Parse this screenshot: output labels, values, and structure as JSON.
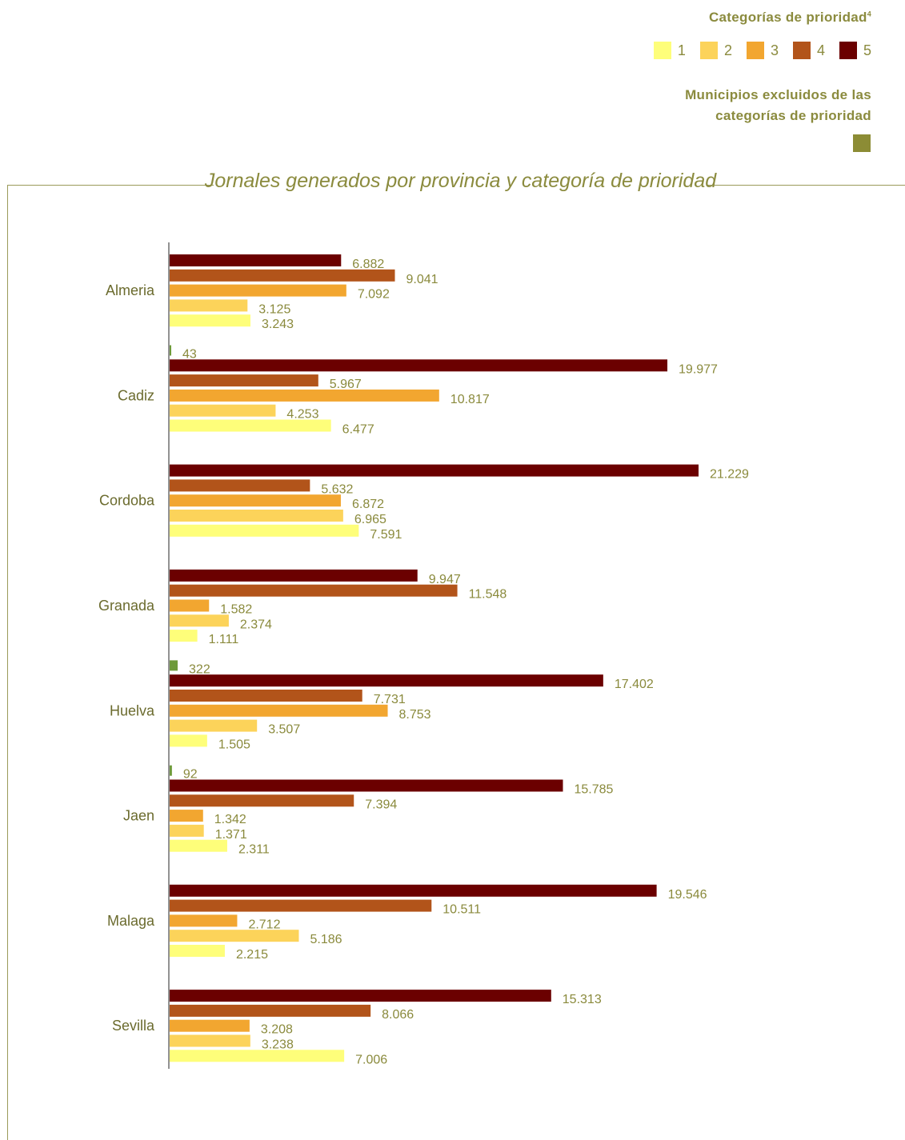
{
  "legend": {
    "title": "Categorías de prioridad",
    "title_sup": "4",
    "items": [
      {
        "label": "1",
        "color": "#fefe7a"
      },
      {
        "label": "2",
        "color": "#fcd35a"
      },
      {
        "label": "3",
        "color": "#f2a630"
      },
      {
        "label": "4",
        "color": "#b2541a"
      },
      {
        "label": "5",
        "color": "#6b0000"
      }
    ],
    "excluded_title_line1": "Municipios excluidos de las",
    "excluded_title_line2": "categorías de prioridad",
    "excluded_color": "#8c8c35"
  },
  "chart_data": {
    "type": "bar",
    "orientation": "horizontal",
    "title": "Jornales generados por provincia y categoría de prioridad",
    "categories": [
      "Almeria",
      "Cadiz",
      "Cordoba",
      "Granada",
      "Huelva",
      "Jaen",
      "Malaga",
      "Sevilla"
    ],
    "series": [
      {
        "name": "Excluidos",
        "color": "#6e9a3a",
        "values": [
          null,
          43,
          null,
          null,
          322,
          92,
          null,
          null
        ],
        "labels": [
          null,
          "43",
          null,
          null,
          "322",
          "92",
          null,
          null
        ]
      },
      {
        "name": "5",
        "color": "#6b0000",
        "values": [
          6882,
          19977,
          21229,
          9947,
          17402,
          15785,
          19546,
          15313
        ],
        "labels": [
          "6.882",
          "19.977",
          "21.229",
          "9.947",
          "17.402",
          "15.785",
          "19.546",
          "15.313"
        ]
      },
      {
        "name": "4",
        "color": "#b2541a",
        "values": [
          9041,
          5967,
          5632,
          11548,
          7731,
          7394,
          10511,
          8066
        ],
        "labels": [
          "9.041",
          "5.967",
          "5.632",
          "11.548",
          "7.731",
          "7.394",
          "10.511",
          "8.066"
        ]
      },
      {
        "name": "3",
        "color": "#f2a630",
        "values": [
          7092,
          10817,
          6872,
          1582,
          8753,
          1342,
          2712,
          3208
        ],
        "labels": [
          "7.092",
          "10.817",
          "6.872",
          "1.582",
          "8.753",
          "1.342",
          "2.712",
          "3.208"
        ]
      },
      {
        "name": "2",
        "color": "#fcd35a",
        "values": [
          3125,
          4253,
          6965,
          2374,
          3507,
          1371,
          5186,
          3238
        ],
        "labels": [
          "3.125",
          "4.253",
          "6.965",
          "2.374",
          "3.507",
          "1.371",
          "5.186",
          "3.238"
        ]
      },
      {
        "name": "1",
        "color": "#fefe7a",
        "values": [
          3243,
          6477,
          7591,
          1111,
          1505,
          2311,
          2215,
          7006
        ],
        "labels": [
          "3.243",
          "6.477",
          "7.591",
          "1.111",
          "1.505",
          "2.311",
          "2.215",
          "7.006"
        ]
      }
    ],
    "grid": false
  }
}
